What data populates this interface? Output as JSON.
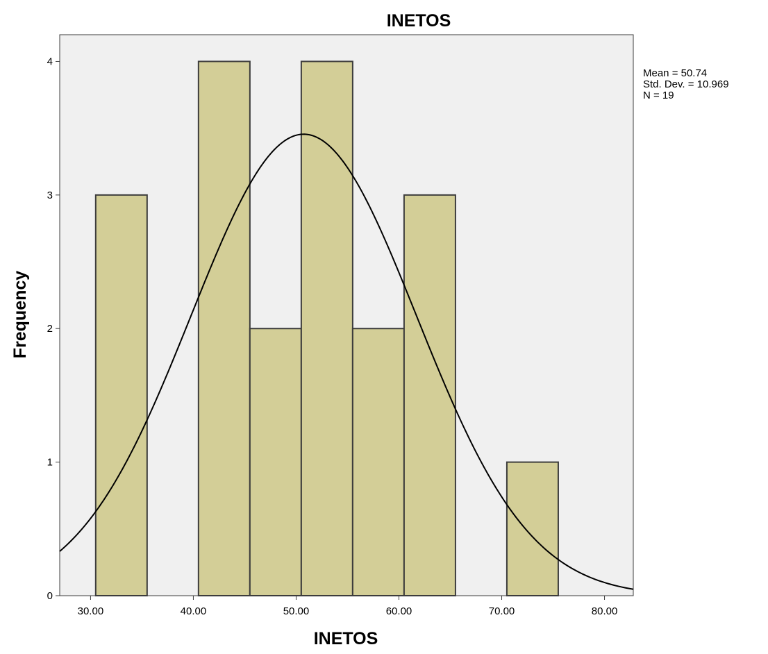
{
  "chart_data": {
    "type": "histogram",
    "title": "INETOS",
    "xlabel": "INETOS",
    "ylabel": "Frequency",
    "xlim": [
      27.0,
      82.8
    ],
    "ylim": [
      0,
      4.2
    ],
    "x_ticks": [
      {
        "value": 30,
        "label": "30.00"
      },
      {
        "value": 40,
        "label": "40.00"
      },
      {
        "value": 50,
        "label": "50.00"
      },
      {
        "value": 60,
        "label": "60.00"
      },
      {
        "value": 70,
        "label": "70.00"
      },
      {
        "value": 80,
        "label": "80.00"
      }
    ],
    "y_ticks": [
      {
        "value": 0,
        "label": "0"
      },
      {
        "value": 1,
        "label": "1"
      },
      {
        "value": 2,
        "label": "2"
      },
      {
        "value": 3,
        "label": "3"
      },
      {
        "value": 4,
        "label": "4"
      }
    ],
    "bins": [
      {
        "x0": 30.5,
        "x1": 35.5,
        "count": 3
      },
      {
        "x0": 40.5,
        "x1": 45.5,
        "count": 4
      },
      {
        "x0": 45.5,
        "x1": 50.5,
        "count": 2
      },
      {
        "x0": 50.5,
        "x1": 55.5,
        "count": 4
      },
      {
        "x0": 55.5,
        "x1": 60.5,
        "count": 2
      },
      {
        "x0": 60.5,
        "x1": 65.5,
        "count": 3
      },
      {
        "x0": 70.5,
        "x1": 75.5,
        "count": 1
      }
    ],
    "normal_curve": {
      "mean": 50.74,
      "std_dev": 10.969,
      "n": 19
    },
    "stats_text": [
      "Mean = 50.74",
      "Std. Dev. = 10.969",
      "N = 19"
    ],
    "grid": false,
    "colors": {
      "plot_bg": "#f0f0f0",
      "bar_fill": "#d3ce97",
      "bar_stroke": "#3c3c3c",
      "curve": "#000000"
    }
  }
}
